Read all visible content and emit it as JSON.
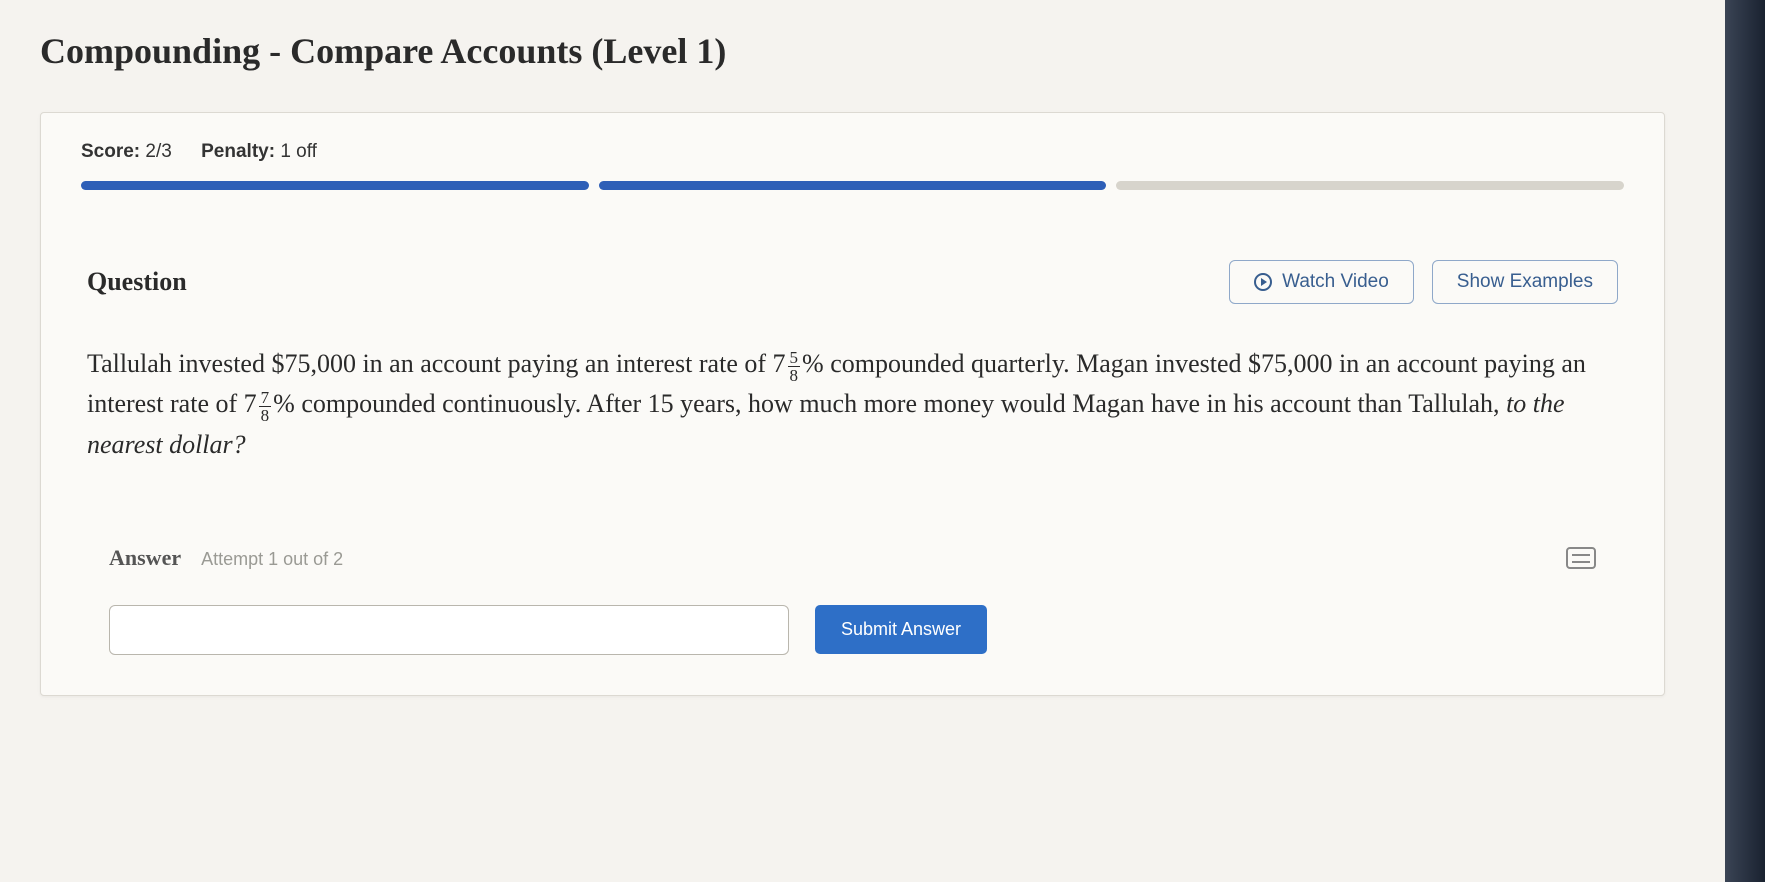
{
  "page": {
    "title": "Compounding - Compare Accounts (Level 1)"
  },
  "meta": {
    "score_label": "Score:",
    "score_value": "2/3",
    "penalty_label": "Penalty:",
    "penalty_value": "1 off"
  },
  "progress": {
    "segments": 3,
    "completed": 2,
    "completed_color": "#2e5fb7",
    "pending_color": "#d7d4cc",
    "track_color": "#e6e3dc"
  },
  "question": {
    "heading": "Question",
    "watch_video_label": "Watch Video",
    "show_examples_label": "Show Examples",
    "text_1a": "Tallulah invested $75,000 in an account paying an interest rate of 7",
    "frac1_num": "5",
    "frac1_den": "8",
    "text_1b": "% compounded quarterly. Magan invested $75,000 in an account paying an interest rate of 7",
    "frac2_num": "7",
    "frac2_den": "8",
    "text_1c": "% compounded continuously. After 15 years, how much more money would Magan have in his account than Tallulah, ",
    "text_italic": "to the nearest dollar?"
  },
  "answer": {
    "label": "Answer",
    "attempt_text": "Attempt 1 out of 2",
    "input_value": "",
    "submit_label": "Submit Answer",
    "submit_bg": "#2e6fc7"
  }
}
